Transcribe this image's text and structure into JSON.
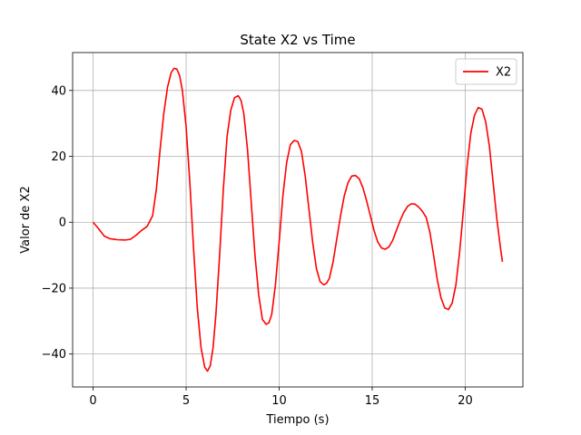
{
  "chart_data": {
    "type": "line",
    "title": "State X2 vs Time",
    "xlabel": "Tiempo (s)",
    "ylabel": "Valor de X2",
    "xlim": [
      -1.1,
      23.1
    ],
    "ylim": [
      -50,
      51.5
    ],
    "xticks": [
      0,
      5,
      10,
      15,
      20
    ],
    "yticks": [
      -40,
      -20,
      0,
      20,
      40
    ],
    "grid": true,
    "legend": "top-right",
    "series": [
      {
        "name": "X2",
        "color": "#ff0000",
        "x": [
          0,
          0.3,
          0.6,
          0.9,
          1.3,
          1.7,
          2.0,
          2.3,
          2.6,
          2.9,
          3.2,
          3.4,
          3.6,
          3.8,
          4.0,
          4.2,
          4.35,
          4.5,
          4.65,
          4.8,
          5.0,
          5.2,
          5.4,
          5.6,
          5.8,
          6.0,
          6.15,
          6.3,
          6.45,
          6.6,
          6.8,
          7.0,
          7.2,
          7.4,
          7.6,
          7.8,
          7.95,
          8.1,
          8.3,
          8.5,
          8.7,
          8.9,
          9.1,
          9.3,
          9.45,
          9.6,
          9.8,
          10.0,
          10.2,
          10.4,
          10.6,
          10.8,
          11.0,
          11.2,
          11.4,
          11.6,
          11.8,
          12.0,
          12.2,
          12.4,
          12.55,
          12.7,
          12.9,
          13.1,
          13.3,
          13.5,
          13.7,
          13.9,
          14.1,
          14.3,
          14.5,
          14.7,
          14.9,
          15.1,
          15.3,
          15.5,
          15.7,
          15.9,
          16.1,
          16.3,
          16.5,
          16.7,
          16.9,
          17.1,
          17.3,
          17.5,
          17.7,
          17.9,
          18.1,
          18.3,
          18.5,
          18.7,
          18.9,
          19.1,
          19.3,
          19.5,
          19.7,
          19.9,
          20.1,
          20.3,
          20.5,
          20.7,
          20.9,
          21.1,
          21.3,
          21.5,
          21.7,
          21.9,
          22.0
        ],
        "y": [
          0,
          -2.0,
          -4.2,
          -5.0,
          -5.3,
          -5.4,
          -5.2,
          -4.0,
          -2.5,
          -1.3,
          2.0,
          10.0,
          22.0,
          33.0,
          41.0,
          45.5,
          46.7,
          46.5,
          44.5,
          40.0,
          29.0,
          12.0,
          -8.0,
          -26.0,
          -38.0,
          -44.0,
          -45.2,
          -43.5,
          -38.0,
          -28.0,
          -10.0,
          10.0,
          26.0,
          34.0,
          37.8,
          38.4,
          37.0,
          33.0,
          22.0,
          6.0,
          -10.0,
          -22.0,
          -29.5,
          -31.0,
          -30.5,
          -28.0,
          -19.0,
          -6.0,
          8.0,
          18.0,
          23.5,
          24.8,
          24.5,
          21.5,
          14.0,
          4.0,
          -6.0,
          -14.0,
          -18.0,
          -19.0,
          -18.5,
          -17.0,
          -12.0,
          -5.0,
          2.0,
          8.0,
          12.0,
          14.0,
          14.2,
          13.2,
          10.5,
          6.5,
          2.0,
          -2.5,
          -6.0,
          -7.8,
          -8.2,
          -7.5,
          -5.5,
          -2.5,
          0.5,
          3.0,
          4.8,
          5.6,
          5.5,
          4.6,
          3.3,
          1.5,
          -3.0,
          -10.0,
          -17.5,
          -23.0,
          -26.0,
          -26.5,
          -24.5,
          -19.0,
          -9.0,
          3.5,
          17.0,
          27.0,
          32.5,
          34.8,
          34.3,
          30.5,
          23.0,
          12.0,
          1.0,
          -8.0,
          -12.0
        ]
      }
    ]
  }
}
